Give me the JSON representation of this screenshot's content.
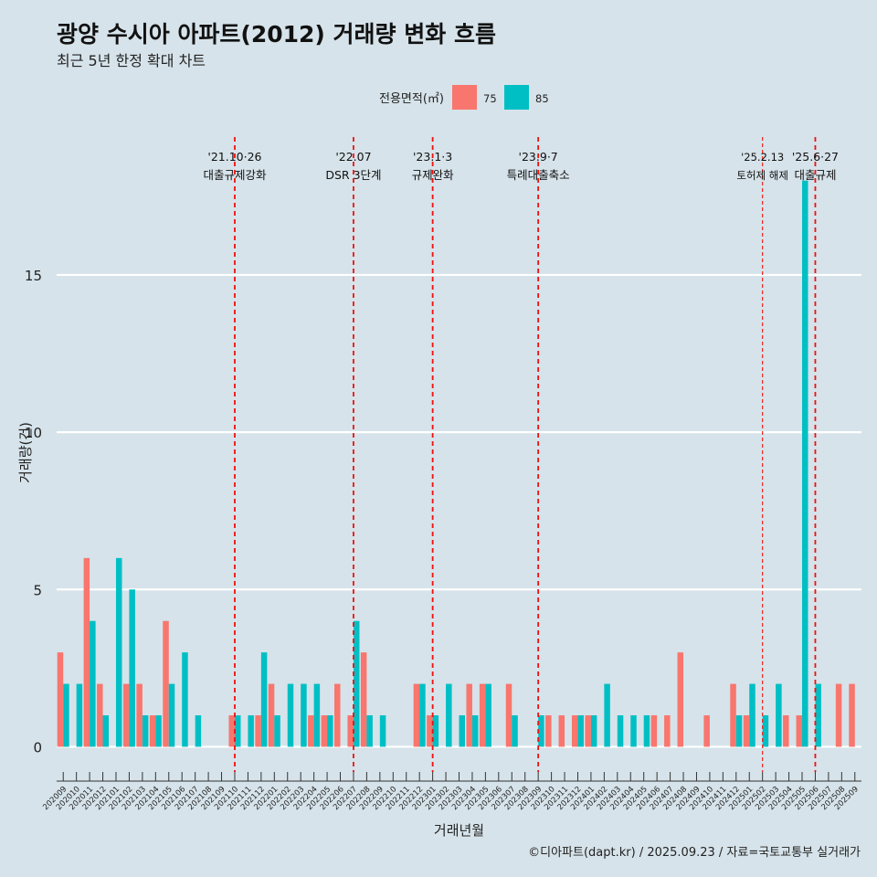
{
  "chart_data": {
    "type": "bar",
    "title": "광양 수시아 아파트(2012) 거래량 변화 흐름",
    "subtitle": "최근 5년 한정 확대 차트",
    "xlabel": "거래년월",
    "ylabel": "거래량(건)",
    "caption": "©디아파트(dapt.kr) / 2025.09.23 / 자료=국토교통부 실거래가",
    "legend": {
      "title": "전용면적(㎡)",
      "position": "top"
    },
    "ylim": [
      -0.8,
      19.5
    ],
    "yticks": [
      0,
      5,
      10,
      15
    ],
    "categories": [
      "202009",
      "202010",
      "202011",
      "202012",
      "202101",
      "202102",
      "202103",
      "202104",
      "202105",
      "202106",
      "202107",
      "202108",
      "202109",
      "202110",
      "202111",
      "202112",
      "202201",
      "202202",
      "202203",
      "202204",
      "202205",
      "202206",
      "202207",
      "202208",
      "202209",
      "202210",
      "202211",
      "202212",
      "202301",
      "202302",
      "202303",
      "202304",
      "202305",
      "202306",
      "202307",
      "202308",
      "202309",
      "202310",
      "202311",
      "202312",
      "202401",
      "202402",
      "202403",
      "202404",
      "202405",
      "202406",
      "202407",
      "202408",
      "202409",
      "202410",
      "202411",
      "202412",
      "202501",
      "202502",
      "202503",
      "202504",
      "202505",
      "202506",
      "202507",
      "202508",
      "202509"
    ],
    "series": [
      {
        "name": "75",
        "color": "#f8766d",
        "values": [
          3,
          0,
          6,
          2,
          0,
          2,
          2,
          1,
          4,
          0,
          0,
          0,
          0,
          1,
          0,
          1,
          2,
          0,
          0,
          1,
          1,
          2,
          1,
          3,
          0,
          0,
          0,
          2,
          1,
          0,
          0,
          2,
          2,
          0,
          2,
          0,
          0,
          1,
          1,
          1,
          1,
          0,
          0,
          0,
          0,
          1,
          1,
          3,
          0,
          1,
          0,
          2,
          1,
          0,
          0,
          1,
          1,
          0,
          0,
          2,
          2
        ]
      },
      {
        "name": "85",
        "color": "#00bfc4",
        "values": [
          2,
          2,
          4,
          1,
          6,
          5,
          1,
          1,
          2,
          3,
          1,
          0,
          0,
          1,
          1,
          3,
          1,
          2,
          2,
          2,
          1,
          0,
          4,
          1,
          1,
          0,
          0,
          2,
          1,
          2,
          1,
          1,
          2,
          0,
          1,
          0,
          1,
          0,
          0,
          1,
          1,
          2,
          1,
          1,
          1,
          0,
          0,
          0,
          0,
          0,
          0,
          1,
          2,
          1,
          2,
          0,
          18,
          2,
          0,
          0,
          0
        ]
      }
    ],
    "annotations": [
      {
        "category": "202110",
        "date": "'21.10·26",
        "label": "대출규제강화",
        "style": "dashed"
      },
      {
        "category": "202207",
        "date": "'22.07",
        "label": "DSR 3단계",
        "style": "dashed"
      },
      {
        "category": "202301",
        "date": "'23.1·3",
        "label": "규제완화",
        "style": "dashed"
      },
      {
        "category": "202309",
        "date": "'23.9·7",
        "label": "특례대출축소",
        "style": "dashed"
      },
      {
        "category": "202502",
        "date": "'25.2.13",
        "label": "토허제 해제",
        "style": "thin-dashed"
      },
      {
        "category": "202506",
        "date": "'25.6·27",
        "label": "대출규제",
        "style": "dashed"
      }
    ],
    "grid": true
  }
}
